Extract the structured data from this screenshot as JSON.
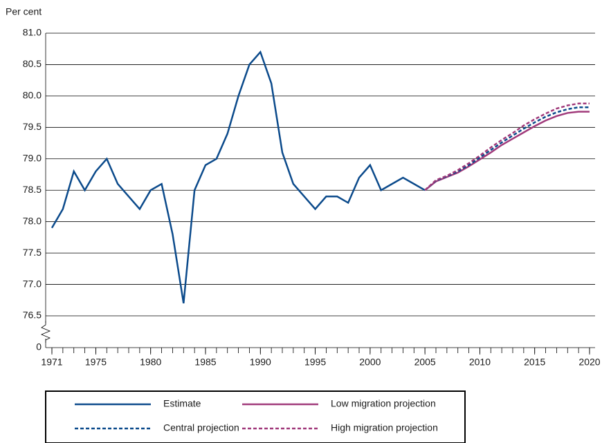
{
  "chart_data": {
    "type": "line",
    "y_axis_label": "Per cent",
    "x": [
      1971,
      1972,
      1973,
      1974,
      1975,
      1976,
      1977,
      1978,
      1979,
      1980,
      1981,
      1982,
      1983,
      1984,
      1985,
      1986,
      1987,
      1988,
      1989,
      1990,
      1991,
      1992,
      1993,
      1994,
      1995,
      1996,
      1997,
      1998,
      1999,
      2000,
      2001,
      2002,
      2003,
      2004,
      2005,
      2006,
      2007,
      2008,
      2009,
      2010,
      2011,
      2012,
      2013,
      2014,
      2015,
      2016,
      2017,
      2018,
      2019,
      2020
    ],
    "series": [
      {
        "name": "Estimate",
        "color": "#0b4a8b",
        "dash": "solid",
        "values": [
          77.9,
          78.2,
          78.8,
          78.5,
          78.8,
          79.0,
          78.6,
          78.4,
          78.2,
          78.5,
          78.6,
          77.8,
          76.7,
          78.5,
          78.9,
          79.0,
          79.4,
          80.0,
          80.5,
          80.7,
          80.2,
          79.1,
          78.6,
          78.4,
          78.2,
          78.4,
          78.4,
          78.3,
          78.7,
          78.9,
          78.5,
          78.6,
          78.7,
          78.6,
          78.5,
          null,
          null,
          null,
          null,
          null,
          null,
          null,
          null,
          null,
          null,
          null,
          null,
          null,
          null,
          null
        ]
      },
      {
        "name": "Low migration projection",
        "color": "#a0397a",
        "dash": "solid",
        "values": [
          null,
          null,
          null,
          null,
          null,
          null,
          null,
          null,
          null,
          null,
          null,
          null,
          null,
          null,
          null,
          null,
          null,
          null,
          null,
          null,
          null,
          null,
          null,
          null,
          null,
          null,
          null,
          null,
          null,
          null,
          null,
          null,
          null,
          null,
          78.5,
          78.64,
          78.71,
          78.78,
          78.88,
          78.99,
          79.1,
          79.22,
          79.32,
          79.42,
          79.52,
          79.61,
          79.68,
          79.73,
          79.75,
          79.75
        ]
      },
      {
        "name": "Central projection",
        "color": "#0b4a8b",
        "dash": "dashed",
        "values": [
          null,
          null,
          null,
          null,
          null,
          null,
          null,
          null,
          null,
          null,
          null,
          null,
          null,
          null,
          null,
          null,
          null,
          null,
          null,
          null,
          null,
          null,
          null,
          null,
          null,
          null,
          null,
          null,
          null,
          null,
          null,
          null,
          null,
          null,
          78.5,
          78.65,
          78.72,
          78.8,
          78.9,
          79.02,
          79.14,
          79.26,
          79.37,
          79.48,
          79.58,
          79.67,
          79.74,
          79.79,
          79.82,
          79.82
        ]
      },
      {
        "name": "High migration projection",
        "color": "#a0397a",
        "dash": "dashed",
        "values": [
          null,
          null,
          null,
          null,
          null,
          null,
          null,
          null,
          null,
          null,
          null,
          null,
          null,
          null,
          null,
          null,
          null,
          null,
          null,
          null,
          null,
          null,
          null,
          null,
          null,
          null,
          null,
          null,
          null,
          null,
          null,
          null,
          null,
          null,
          78.5,
          78.66,
          78.73,
          78.82,
          78.93,
          79.05,
          79.18,
          79.3,
          79.41,
          79.53,
          79.63,
          79.72,
          79.8,
          79.85,
          79.88,
          79.88
        ]
      }
    ],
    "xlim": [
      1971,
      2020
    ],
    "xticks": [
      1971,
      1975,
      1980,
      1985,
      1990,
      1995,
      2000,
      2005,
      2010,
      2015,
      2020
    ],
    "ylim": [
      76.5,
      81.0
    ],
    "y_broken": true,
    "yticks": [
      0,
      {
        "value": 76.5,
        "label": "76.5"
      },
      {
        "value": 77.0,
        "label": "77.0"
      },
      {
        "value": 77.5,
        "label": "77.5"
      },
      {
        "value": 78.0,
        "label": "78.0"
      },
      {
        "value": 78.5,
        "label": "78.5"
      },
      {
        "value": 79.0,
        "label": "79.0"
      },
      {
        "value": 79.5,
        "label": "79.5"
      },
      {
        "value": 80.0,
        "label": "80.0"
      },
      {
        "value": 80.5,
        "label": "80.5"
      },
      {
        "value": 81.0,
        "label": "81.0"
      }
    ],
    "grid": true
  }
}
